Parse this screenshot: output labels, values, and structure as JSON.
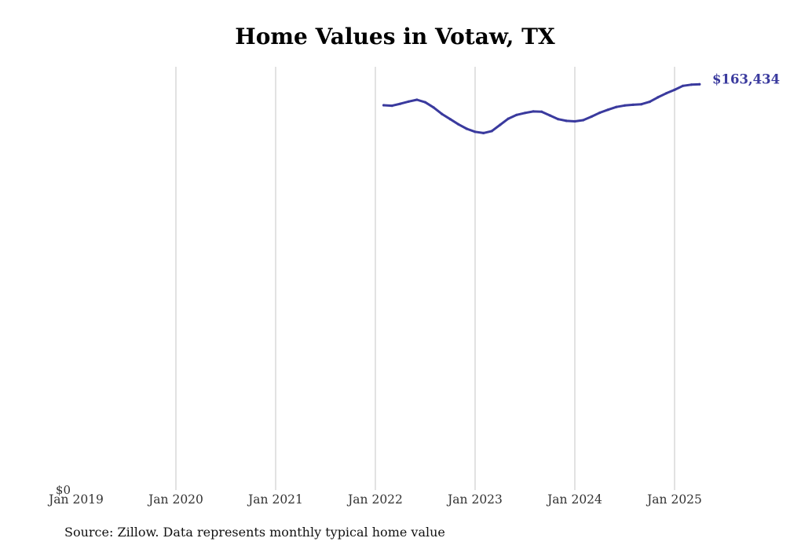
{
  "chart_data": {
    "type": "line",
    "title": "Home Values in Votaw, TX",
    "source": "Source: Zillow. Data represents monthly typical home value",
    "xlabel": "",
    "ylabel": "",
    "x_ticks": [
      "Jan 2019",
      "Jan 2020",
      "Jan 2021",
      "Jan 2022",
      "Jan 2023",
      "Jan 2024",
      "Jan 2025"
    ],
    "y_ticks": [
      "$0"
    ],
    "xlim": [
      "2019-01",
      "2025-05"
    ],
    "ylim": [
      0,
      170500
    ],
    "grid": "vertical",
    "line_color": "#3a3a9e",
    "end_label": "$163,434",
    "series": [
      {
        "x": [
          "2022-02",
          "2022-03",
          "2022-04",
          "2022-05",
          "2022-06",
          "2022-07",
          "2022-08",
          "2022-09",
          "2022-10",
          "2022-11",
          "2022-12",
          "2023-01",
          "2023-02",
          "2023-03",
          "2023-04",
          "2023-05",
          "2023-06",
          "2023-07",
          "2023-08",
          "2023-09",
          "2023-10",
          "2023-11",
          "2023-12",
          "2024-01",
          "2024-02",
          "2024-03",
          "2024-04",
          "2024-05",
          "2024-06",
          "2024-07",
          "2024-08",
          "2024-09",
          "2024-10",
          "2024-11",
          "2024-12",
          "2025-01",
          "2025-02",
          "2025-03",
          "2025-04"
        ],
        "y": [
          155000,
          154800,
          155600,
          156500,
          157200,
          156200,
          154100,
          151500,
          149400,
          147300,
          145500,
          144300,
          143800,
          144600,
          147100,
          149600,
          151100,
          151900,
          152500,
          152400,
          150900,
          149400,
          148700,
          148500,
          149000,
          150400,
          152000,
          153200,
          154300,
          154900,
          155200,
          155400,
          156400,
          158200,
          159800,
          161200,
          162800,
          163300,
          163434
        ]
      }
    ]
  }
}
